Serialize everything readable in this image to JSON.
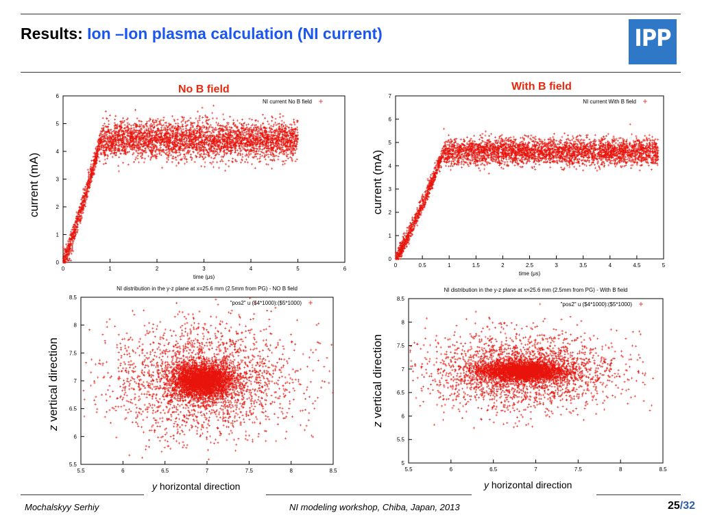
{
  "title": {
    "prefix": "Results:",
    "main": "Ion –Ion plasma calculation (NI current)"
  },
  "logo": {
    "text": "IPP"
  },
  "panels": {
    "left_heading": "No B field",
    "right_heading": "With B field"
  },
  "axis_labels": {
    "current_left": "current (mA)",
    "current_right": "current (mA)",
    "z_left_italic": "z",
    "z_left": " vertical direction",
    "z_right_italic": "z",
    "z_right": " vertical direction",
    "y_left_italic": "y",
    "y_left": " horizontal direction",
    "y_right_italic": "y",
    "y_right": " horizontal direction"
  },
  "footer": {
    "author": "Mochalskyy Serhiy",
    "event": "NI modeling workshop,  Chiba, Japan, 2013",
    "page_current": "25",
    "page_total": "/32"
  },
  "colors": {
    "marker": "#e8140c",
    "heading": "#e8280c",
    "title_accent": "#1a56f0",
    "logo": "#2f78c8"
  },
  "chart_data": [
    {
      "type": "scatter",
      "title": "",
      "xlabel": "time (μs)",
      "ylabel": "",
      "legend": "NI current No B field",
      "legend_position": "top-right",
      "xlim": [
        0,
        6
      ],
      "ylim": [
        0,
        6
      ],
      "xticks": [
        0,
        1,
        2,
        3,
        4,
        5,
        6
      ],
      "yticks": [
        0,
        1,
        2,
        3,
        4,
        5,
        6
      ],
      "series": [
        {
          "name": "NI current No B field",
          "shape": "ramp",
          "ramp_end_x": 0.8,
          "plateau_y": 4.4,
          "plateau_spread": 0.6,
          "x_end": 5.0
        }
      ]
    },
    {
      "type": "scatter",
      "title": "",
      "xlabel": "time (μs)",
      "ylabel": "",
      "legend": "NI current With B field",
      "legend_position": "top-right",
      "xlim": [
        0,
        5
      ],
      "ylim": [
        0,
        7
      ],
      "xticks": [
        0,
        0.5,
        1,
        1.5,
        2,
        2.5,
        3,
        3.5,
        4,
        4.5,
        5
      ],
      "yticks": [
        0,
        1,
        2,
        3,
        4,
        5,
        6,
        7
      ],
      "series": [
        {
          "name": "NI current With B field",
          "shape": "ramp",
          "ramp_end_x": 0.9,
          "plateau_y": 4.6,
          "plateau_spread": 0.5,
          "x_end": 4.9
        }
      ]
    },
    {
      "type": "scatter",
      "title": "NI distribution in the y-z plane at x=25.6 mm (2.5mm from PG) - NO B field",
      "xlabel": "",
      "ylabel": "",
      "legend": "\"pos2\" u ($4*1000):($5*1000)",
      "legend_position": "top-right",
      "xlim": [
        5.5,
        8.5
      ],
      "ylim": [
        5.5,
        8.5
      ],
      "xticks": [
        5.5,
        6,
        6.5,
        7,
        7.5,
        8,
        8.5
      ],
      "yticks": [
        5.5,
        6,
        6.5,
        7,
        7.5,
        8,
        8.5
      ],
      "series": [
        {
          "name": "\"pos2\" u ($4*1000):($5*1000)",
          "shape": "cloud",
          "center": [
            6.95,
            7.0
          ],
          "core_sigma": [
            0.18,
            0.15
          ],
          "halo_sigma": [
            0.55,
            0.5
          ]
        }
      ]
    },
    {
      "type": "scatter",
      "title": "NI distribution in the y-z plane at x=25.6 mm (2.5mm from PG) - With B field",
      "xlabel": "",
      "ylabel": "",
      "legend": "\"pos2\" u ($4*1000):($5*1000)",
      "legend_position": "top-right",
      "xlim": [
        5.5,
        8.5
      ],
      "ylim": [
        5,
        8.5
      ],
      "xticks": [
        5.5,
        6,
        6.5,
        7,
        7.5,
        8,
        8.5
      ],
      "yticks": [
        5,
        5.5,
        6,
        6.5,
        7,
        7.5,
        8,
        8.5
      ],
      "series": [
        {
          "name": "\"pos2\" u ($4*1000):($5*1000)",
          "shape": "cloud",
          "center": [
            6.85,
            6.95
          ],
          "core_sigma": [
            0.25,
            0.1
          ],
          "halo_sigma": [
            0.55,
            0.4
          ]
        }
      ]
    }
  ]
}
